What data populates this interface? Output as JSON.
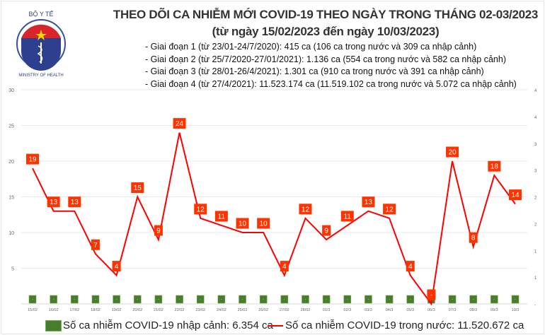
{
  "header": {
    "logo_text_top": "BỘ Y TẾ",
    "logo_text_bottom": "MINISTRY OF HEALTH",
    "title": "THEO DÕI CA NHIỄM MỚI COVID-19 THEO NGÀY TRONG THÁNG 02-03/2023",
    "subtitle": "(từ ngày 15/02/2023 đến ngày 10/03/2023)",
    "phases": [
      "- Giai đoạn 1 (từ 23/01-24/7/2020): 415 ca (106 ca trong nước và 309 ca nhập cảnh)",
      "- Giai đoạn 2 (từ 25/7/2020-27/01/2021): 1.136 ca (554 ca trong nước và 582 ca nhập cảnh)",
      "- Giai đoạn 3 (từ 28/01-26/4/2021): 1.301 ca (910 ca trong nước và 391 ca nhập cảnh)",
      "- Giai đoạn 4 (từ 27/4/2021): 11.523.174 ca (11.519.102 ca trong nước và 5.072 ca nhập cảnh)"
    ]
  },
  "chart_data": {
    "type": "bar+line",
    "categories": [
      "15/02",
      "16/02",
      "17/02",
      "18/02",
      "19/02",
      "20/02",
      "21/02",
      "22/02",
      "23/02",
      "24/02",
      "25/02",
      "26/02",
      "27/02",
      "28/02",
      "01/3",
      "02/3",
      "03/3",
      "04/3",
      "05/3",
      "06/3",
      "07/3",
      "08/3",
      "09/3",
      "10/3"
    ],
    "series": [
      {
        "name": "Số ca nhiễm COVID-19 nhập cảnh: 6.354 ca",
        "type": "bar",
        "axis": "right",
        "color": "#4a7c2e",
        "values": [
          0,
          0,
          0,
          0,
          0,
          0,
          0,
          0,
          0,
          0,
          0,
          0,
          0,
          0,
          0,
          0,
          0,
          0,
          0,
          0,
          0,
          0,
          0,
          0
        ]
      },
      {
        "name": "Số ca nhiễm COVID-19 trong nước: 11.520.672 ca",
        "type": "line",
        "axis": "left",
        "color": "#ff0000",
        "values": [
          19,
          13,
          13,
          7,
          4,
          15,
          9,
          24,
          12,
          11,
          10,
          10,
          4,
          12,
          9,
          11,
          13,
          12,
          4,
          0,
          20,
          8,
          18,
          14
        ]
      }
    ],
    "y_left": {
      "ylim": [
        0,
        30
      ],
      "ticks": [
        "",
        "5",
        "10",
        "15",
        "20",
        "25",
        "30"
      ]
    },
    "y_right": {
      "ticks": [
        "-",
        "1",
        "1",
        "2",
        "2",
        "3",
        "3",
        "4",
        "4"
      ]
    },
    "zero_label": "-",
    "grid": true,
    "legend": "bottom",
    "label_color": "#ff3300"
  }
}
